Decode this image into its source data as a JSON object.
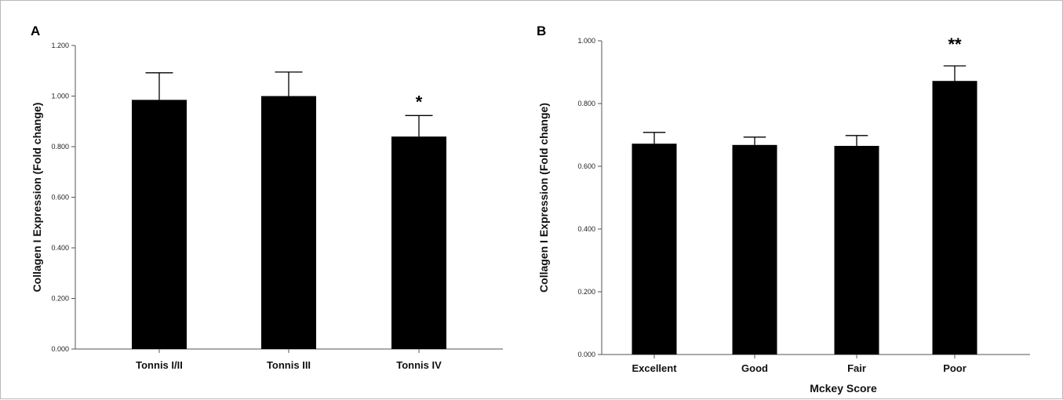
{
  "chart_data": [
    {
      "type": "bar",
      "panel_label": "A",
      "categories": [
        "Tonnis I/II",
        "Tonnis III",
        "Tonnis IV"
      ],
      "values": [
        0.985,
        1.0,
        0.84
      ],
      "error_upper": [
        1.092,
        1.095,
        0.923
      ],
      "annotations": [
        "",
        "",
        "*"
      ],
      "xlabel": "",
      "ylabel": "Collagen I Expression (Fold change)",
      "ylim": [
        0,
        1.2
      ],
      "yticks": [
        "0.000",
        "0.200",
        "0.400",
        "0.600",
        "0.800",
        "1.000",
        "1.200"
      ],
      "grid": false
    },
    {
      "type": "bar",
      "panel_label": "B",
      "categories": [
        "Excellent",
        "Good",
        "Fair",
        "Poor"
      ],
      "values": [
        0.672,
        0.668,
        0.665,
        0.872
      ],
      "error_upper": [
        0.708,
        0.693,
        0.698,
        0.92
      ],
      "annotations": [
        "",
        "",
        "",
        "**"
      ],
      "xlabel": "Mckey Score",
      "ylabel": "Collagen I Expression (Fold change)",
      "ylim": [
        0,
        1.0
      ],
      "yticks": [
        "0.000",
        "0.200",
        "0.400",
        "0.600",
        "0.800",
        "1.000"
      ],
      "grid": false
    }
  ],
  "colors": {
    "bar": "#000000",
    "axis": "#555555",
    "text": "#111111"
  }
}
